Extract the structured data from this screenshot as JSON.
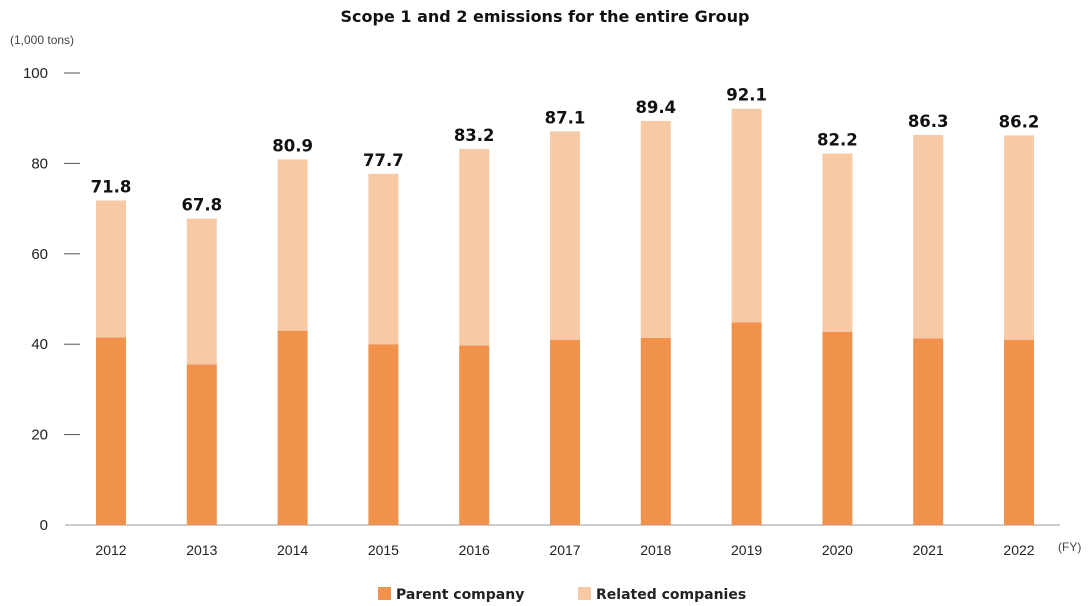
{
  "chart_data": {
    "type": "bar",
    "stacked": true,
    "title": "Scope 1 and 2 emissions for the entire Group",
    "ylabel": "(1,000 tons)",
    "xlabel": "(FY)",
    "ylim": [
      0,
      100
    ],
    "yticks": [
      "0",
      "20",
      "40",
      "60",
      "80",
      "100"
    ],
    "categories": [
      "2012",
      "2013",
      "2014",
      "2015",
      "2016",
      "2017",
      "2018",
      "2019",
      "2020",
      "2021",
      "2022"
    ],
    "series": [
      {
        "name": "Parent company",
        "color": "#f0924b",
        "values": [
          41.5,
          35.5,
          43.0,
          40.0,
          39.7,
          41.0,
          41.4,
          44.8,
          42.7,
          41.3,
          41.0
        ]
      },
      {
        "name": "Related companies",
        "color": "#f7c9a5",
        "values": [
          30.3,
          32.3,
          37.9,
          37.7,
          43.5,
          46.1,
          48.0,
          47.3,
          39.5,
          45.0,
          45.2
        ]
      }
    ],
    "totals": [
      "71.8",
      "67.8",
      "80.9",
      "77.7",
      "83.2",
      "87.1",
      "89.4",
      "92.1",
      "82.2",
      "86.3",
      "86.2"
    ],
    "grid": false,
    "legend_position": "bottom-center"
  }
}
